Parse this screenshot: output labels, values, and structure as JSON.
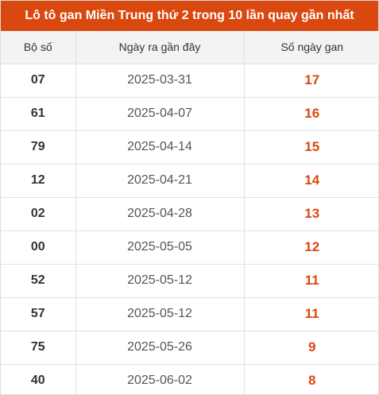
{
  "title": "Lô tô gan Miền Trung thứ 2 trong 10 lần quay gần nhất",
  "colors": {
    "accent": "#d9480f",
    "header_bg": "#f3f3f3",
    "border": "#e2e2e2"
  },
  "table": {
    "headers": [
      "Bộ số",
      "Ngày ra gần đây",
      "Số ngày gan"
    ],
    "rows": [
      {
        "number": "07",
        "date": "2025-03-31",
        "days": "17"
      },
      {
        "number": "61",
        "date": "2025-04-07",
        "days": "16"
      },
      {
        "number": "79",
        "date": "2025-04-14",
        "days": "15"
      },
      {
        "number": "12",
        "date": "2025-04-21",
        "days": "14"
      },
      {
        "number": "02",
        "date": "2025-04-28",
        "days": "13"
      },
      {
        "number": "00",
        "date": "2025-05-05",
        "days": "12"
      },
      {
        "number": "52",
        "date": "2025-05-12",
        "days": "11"
      },
      {
        "number": "57",
        "date": "2025-05-12",
        "days": "11"
      },
      {
        "number": "75",
        "date": "2025-05-26",
        "days": "9"
      },
      {
        "number": "40",
        "date": "2025-06-02",
        "days": "8"
      }
    ]
  }
}
